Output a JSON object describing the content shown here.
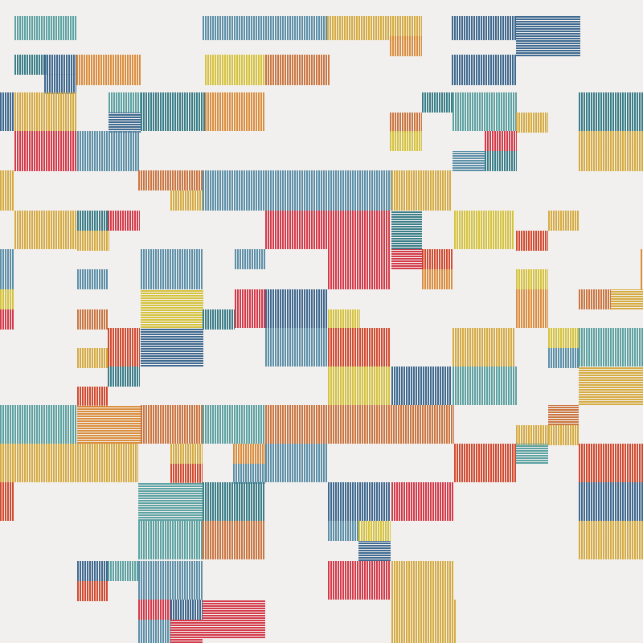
{
  "artwork": {
    "background": "#f2f0ee",
    "palette": {
      "teal": "#4f9b9b",
      "dkteal": "#2a7480",
      "blue": "#2f5d88",
      "steel": "#4f87a3",
      "yellow": "#d3bf2e",
      "mustard": "#d3a532",
      "orange": "#d9862e",
      "burnt": "#c86b32",
      "red": "#d12a3c",
      "redorange": "#cf3b1f"
    }
  }
}
